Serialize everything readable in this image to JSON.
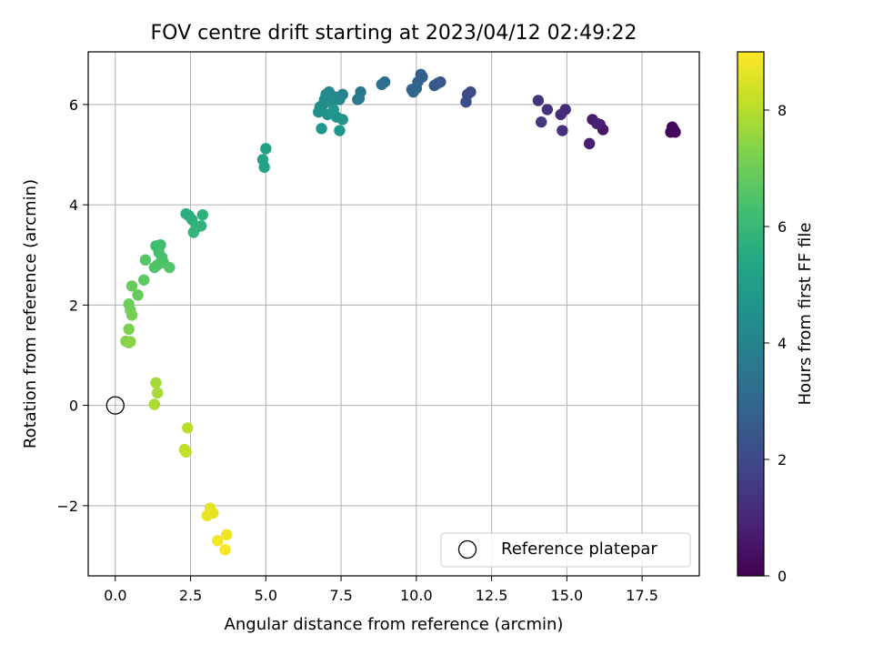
{
  "chart_data": {
    "type": "scatter",
    "title": "FOV centre drift starting at 2023/04/12 02:49:22",
    "xlabel": "Angular distance from reference (arcmin)",
    "ylabel": "Rotation from reference (arcmin)",
    "xlim": [
      -0.9,
      19.4
    ],
    "ylim": [
      -3.4,
      7.05
    ],
    "xticks": [
      0.0,
      2.5,
      5.0,
      7.5,
      10.0,
      12.5,
      15.0,
      17.5
    ],
    "xtick_labels": [
      "0.0",
      "2.5",
      "5.0",
      "7.5",
      "10.0",
      "12.5",
      "15.0",
      "17.5"
    ],
    "yticks": [
      -2,
      0,
      2,
      4,
      6
    ],
    "ytick_labels": [
      "−2",
      "0",
      "2",
      "4",
      "6"
    ],
    "grid": true,
    "colorbar": {
      "label": "Hours from first FF file",
      "range": [
        0,
        9
      ],
      "ticks": [
        0,
        2,
        4,
        6,
        8
      ],
      "tick_labels": [
        "0",
        "2",
        "4",
        "6",
        "8"
      ],
      "colormap": "viridis"
    },
    "legend": {
      "placement": "lower-right",
      "entries": [
        "Reference platepar"
      ]
    },
    "reference_point": {
      "x": 0.0,
      "y": 0.0,
      "marker": "open-circle"
    },
    "points": [
      {
        "x": 18.5,
        "y": 5.55,
        "c": 0.05
      },
      {
        "x": 18.6,
        "y": 5.45,
        "c": 0.1
      },
      {
        "x": 18.45,
        "y": 5.45,
        "c": 0.15
      },
      {
        "x": 18.55,
        "y": 5.5,
        "c": 0.2
      },
      {
        "x": 16.2,
        "y": 5.5,
        "c": 0.6
      },
      {
        "x": 16.1,
        "y": 5.6,
        "c": 0.65
      },
      {
        "x": 15.85,
        "y": 5.7,
        "c": 0.7
      },
      {
        "x": 15.75,
        "y": 5.22,
        "c": 0.75
      },
      {
        "x": 16.0,
        "y": 5.62,
        "c": 0.8
      },
      {
        "x": 14.95,
        "y": 5.9,
        "c": 1.1
      },
      {
        "x": 14.8,
        "y": 5.8,
        "c": 1.15
      },
      {
        "x": 14.85,
        "y": 5.48,
        "c": 1.2
      },
      {
        "x": 14.35,
        "y": 5.9,
        "c": 1.3
      },
      {
        "x": 14.05,
        "y": 6.08,
        "c": 1.35
      },
      {
        "x": 14.15,
        "y": 5.65,
        "c": 1.4
      },
      {
        "x": 11.8,
        "y": 6.25,
        "c": 2.0
      },
      {
        "x": 11.7,
        "y": 6.2,
        "c": 2.05
      },
      {
        "x": 11.65,
        "y": 6.05,
        "c": 2.1
      },
      {
        "x": 10.8,
        "y": 6.45,
        "c": 2.4
      },
      {
        "x": 10.6,
        "y": 6.38,
        "c": 2.5
      },
      {
        "x": 10.7,
        "y": 6.42,
        "c": 2.55
      },
      {
        "x": 10.15,
        "y": 6.6,
        "c": 2.7
      },
      {
        "x": 10.2,
        "y": 6.55,
        "c": 2.75
      },
      {
        "x": 10.05,
        "y": 6.45,
        "c": 2.8
      },
      {
        "x": 9.85,
        "y": 6.3,
        "c": 2.9
      },
      {
        "x": 9.9,
        "y": 6.25,
        "c": 2.95
      },
      {
        "x": 10.0,
        "y": 6.32,
        "c": 3.0
      },
      {
        "x": 8.95,
        "y": 6.45,
        "c": 3.2
      },
      {
        "x": 8.85,
        "y": 6.4,
        "c": 3.25
      },
      {
        "x": 8.15,
        "y": 6.25,
        "c": 3.55
      },
      {
        "x": 8.05,
        "y": 6.1,
        "c": 3.6
      },
      {
        "x": 8.1,
        "y": 6.12,
        "c": 3.65
      },
      {
        "x": 7.55,
        "y": 6.2,
        "c": 4.0
      },
      {
        "x": 7.45,
        "y": 6.1,
        "c": 4.05
      },
      {
        "x": 7.3,
        "y": 6.15,
        "c": 4.1
      },
      {
        "x": 7.1,
        "y": 6.25,
        "c": 4.15
      },
      {
        "x": 7.0,
        "y": 6.2,
        "c": 4.2
      },
      {
        "x": 6.95,
        "y": 6.1,
        "c": 4.25
      },
      {
        "x": 6.9,
        "y": 6.0,
        "c": 4.3
      },
      {
        "x": 7.2,
        "y": 6.05,
        "c": 4.35
      },
      {
        "x": 6.8,
        "y": 5.95,
        "c": 4.4
      },
      {
        "x": 6.75,
        "y": 5.85,
        "c": 4.45
      },
      {
        "x": 7.05,
        "y": 5.8,
        "c": 4.5
      },
      {
        "x": 7.35,
        "y": 5.75,
        "c": 4.55
      },
      {
        "x": 7.55,
        "y": 5.7,
        "c": 4.6
      },
      {
        "x": 6.85,
        "y": 5.52,
        "c": 4.65
      },
      {
        "x": 7.45,
        "y": 5.48,
        "c": 4.7
      },
      {
        "x": 7.25,
        "y": 5.9,
        "c": 4.75
      },
      {
        "x": 5.0,
        "y": 5.12,
        "c": 5.1
      },
      {
        "x": 4.9,
        "y": 4.9,
        "c": 5.15
      },
      {
        "x": 4.95,
        "y": 4.75,
        "c": 5.2
      },
      {
        "x": 2.35,
        "y": 3.82,
        "c": 5.6
      },
      {
        "x": 2.45,
        "y": 3.78,
        "c": 5.65
      },
      {
        "x": 2.55,
        "y": 3.7,
        "c": 5.7
      },
      {
        "x": 2.9,
        "y": 3.8,
        "c": 5.75
      },
      {
        "x": 2.85,
        "y": 3.58,
        "c": 5.8
      },
      {
        "x": 2.7,
        "y": 3.55,
        "c": 5.85
      },
      {
        "x": 2.6,
        "y": 3.45,
        "c": 5.9
      },
      {
        "x": 1.5,
        "y": 3.2,
        "c": 6.2
      },
      {
        "x": 1.35,
        "y": 3.18,
        "c": 6.25
      },
      {
        "x": 1.45,
        "y": 3.05,
        "c": 6.3
      },
      {
        "x": 1.55,
        "y": 2.95,
        "c": 6.35
      },
      {
        "x": 1.6,
        "y": 2.85,
        "c": 6.4
      },
      {
        "x": 1.4,
        "y": 2.8,
        "c": 6.45
      },
      {
        "x": 1.3,
        "y": 2.75,
        "c": 6.5
      },
      {
        "x": 1.8,
        "y": 2.75,
        "c": 6.55
      },
      {
        "x": 1.0,
        "y": 2.9,
        "c": 6.6
      },
      {
        "x": 0.95,
        "y": 2.5,
        "c": 6.75
      },
      {
        "x": 0.75,
        "y": 2.2,
        "c": 6.85
      },
      {
        "x": 0.55,
        "y": 2.38,
        "c": 6.9
      },
      {
        "x": 0.45,
        "y": 2.02,
        "c": 7.0
      },
      {
        "x": 0.5,
        "y": 1.9,
        "c": 7.05
      },
      {
        "x": 0.55,
        "y": 1.8,
        "c": 7.1
      },
      {
        "x": 0.45,
        "y": 1.52,
        "c": 7.2
      },
      {
        "x": 0.35,
        "y": 1.28,
        "c": 7.3
      },
      {
        "x": 0.45,
        "y": 1.25,
        "c": 7.35
      },
      {
        "x": 0.5,
        "y": 1.27,
        "c": 7.4
      },
      {
        "x": 1.35,
        "y": 0.45,
        "c": 7.75
      },
      {
        "x": 1.4,
        "y": 0.25,
        "c": 7.8
      },
      {
        "x": 1.3,
        "y": 0.02,
        "c": 7.85
      },
      {
        "x": 2.4,
        "y": -0.45,
        "c": 8.05
      },
      {
        "x": 2.3,
        "y": -0.88,
        "c": 8.15
      },
      {
        "x": 2.35,
        "y": -0.93,
        "c": 8.2
      },
      {
        "x": 3.15,
        "y": -2.05,
        "c": 8.6
      },
      {
        "x": 3.25,
        "y": -2.15,
        "c": 8.65
      },
      {
        "x": 3.05,
        "y": -2.2,
        "c": 8.7
      },
      {
        "x": 3.7,
        "y": -2.58,
        "c": 8.8
      },
      {
        "x": 3.4,
        "y": -2.7,
        "c": 8.85
      },
      {
        "x": 3.65,
        "y": -2.88,
        "c": 8.9
      }
    ]
  }
}
